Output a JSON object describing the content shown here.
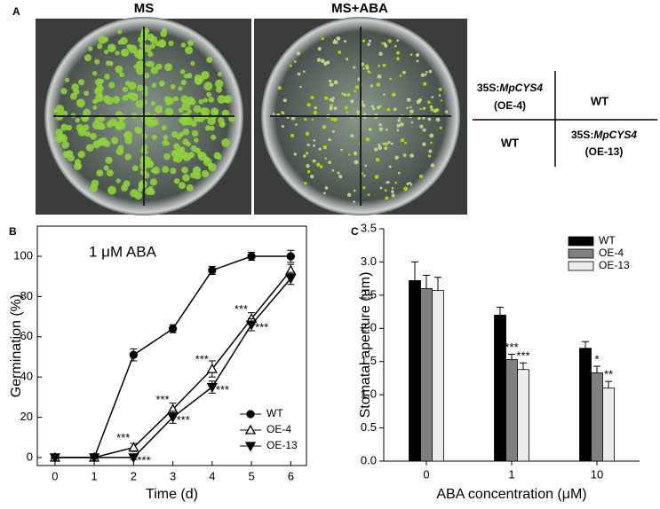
{
  "panel_a": {
    "label": "A",
    "plate_titles": [
      "MS",
      "MS+ABA"
    ],
    "quadrants": {
      "top_left": {
        "prefix": "35S:",
        "gene": "MpCYS4",
        "line": "(OE-4)"
      },
      "top_right": "WT",
      "bottom_left": "WT",
      "bottom_right": {
        "prefix": "35S:",
        "gene": "MpCYS4",
        "line": "(OE-13)"
      }
    }
  },
  "chart_data": [
    {
      "type": "line",
      "panel": "B",
      "annotation": "1 μM ABA",
      "x_label": "Time (d)",
      "y_label": "Germination (%)",
      "x": [
        0,
        1,
        2,
        3,
        4,
        5,
        6
      ],
      "xlim": [
        -0.45,
        6.4
      ],
      "xticks": [
        0,
        1,
        2,
        3,
        4,
        5,
        6
      ],
      "ylim": [
        -4,
        115
      ],
      "yticks": [
        0,
        20,
        40,
        60,
        80,
        100
      ],
      "legend": "lower right",
      "series": [
        {
          "name": "WT",
          "color": "#000000",
          "marker": "circle",
          "values": [
            0,
            0,
            51,
            64,
            93,
            100,
            100
          ],
          "errors": [
            0,
            0,
            3,
            2,
            2,
            2,
            3
          ],
          "significance": [
            null,
            null,
            null,
            null,
            null,
            null,
            null
          ]
        },
        {
          "name": "OE-4",
          "color": "#000000",
          "marker": "triangle-up",
          "values": [
            0,
            0,
            5,
            24,
            44,
            69,
            93
          ],
          "errors": [
            0,
            0,
            2,
            3,
            4,
            3,
            3
          ],
          "significance": [
            null,
            null,
            "***",
            "***",
            "***",
            "***",
            null
          ]
        },
        {
          "name": "OE-13",
          "color": "#000000",
          "marker": "triangle-down",
          "values": [
            0,
            0,
            0,
            20,
            35,
            66,
            89
          ],
          "errors": [
            0,
            0,
            1,
            3,
            3,
            3,
            3
          ],
          "significance": [
            null,
            null,
            "***",
            "***",
            "***",
            "***",
            null
          ]
        }
      ]
    },
    {
      "type": "bar",
      "panel": "C",
      "x_label": "ABA concentration (μM)",
      "y_label": "Stomatal aperture (μm)",
      "categories": [
        "0",
        "1",
        "10"
      ],
      "ylim": [
        0,
        3.5
      ],
      "yticks": [
        {
          "value": 0,
          "label": "0.0"
        },
        0.5,
        {
          "value": 1,
          "label": "1.0"
        },
        1.5,
        {
          "value": 2,
          "label": "2.0"
        },
        2.5,
        {
          "value": 3,
          "label": "3.0"
        },
        3.5
      ],
      "legend": "upper right",
      "series": [
        {
          "name": "WT",
          "color": "#000000",
          "values": [
            2.72,
            2.2,
            1.7
          ],
          "errors": [
            0.28,
            0.12,
            0.1
          ],
          "significance": [
            null,
            null,
            null
          ]
        },
        {
          "name": "OE-4",
          "color": "#7f7f7f",
          "values": [
            2.6,
            1.53,
            1.33
          ],
          "errors": [
            0.2,
            0.08,
            0.1
          ],
          "significance": [
            null,
            "***",
            "*"
          ]
        },
        {
          "name": "OE-13",
          "color": "#ececec",
          "values": [
            2.57,
            1.38,
            1.1
          ],
          "errors": [
            0.2,
            0.1,
            0.1
          ],
          "significance": [
            null,
            "***",
            "**"
          ]
        }
      ]
    }
  ]
}
